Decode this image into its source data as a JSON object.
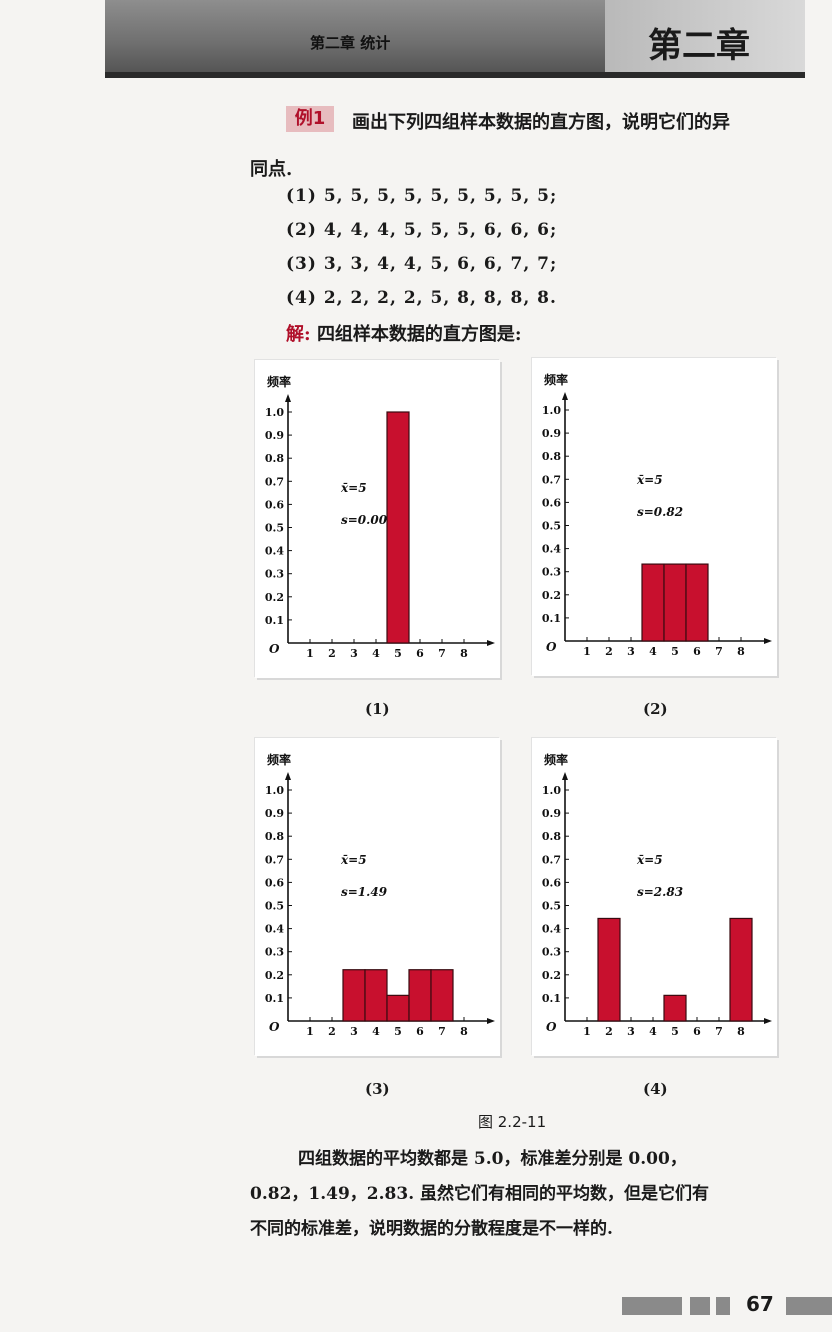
{
  "header": {
    "runner": "第二章  统计",
    "chapter_badge": "第二章"
  },
  "example": {
    "tag": "例1",
    "statement_line1": "画出下列四组样本数据的直方图，说明它们的异",
    "statement_line2": "同点.",
    "data_lines": [
      "(1) 5, 5, 5, 5, 5, 5, 5, 5, 5;",
      "(2) 4, 4, 4, 5, 5, 5, 6, 6, 6;",
      "(3) 3, 3, 4, 4, 5, 6, 6, 7, 7;",
      "(4) 2, 2, 2, 2, 5, 8, 8, 8, 8."
    ],
    "solution_label": "解:",
    "solution_text": "四组样本数据的直方图是:"
  },
  "figure_caption": "图 2.2-11",
  "conclusion": [
    "四组数据的平均数都是 5.0，标准差分别是 0.00，",
    "0.82，1.49，2.83. 虽然它们有相同的平均数，但是它们有",
    "不同的标准差，说明数据的分散程度是不一样的."
  ],
  "page_number": "67",
  "chart_data": [
    {
      "type": "bar",
      "caption": "(1)",
      "ylabel": "频率",
      "origin_label": "O",
      "x_ticks": [
        "1",
        "2",
        "3",
        "4",
        "5",
        "6",
        "7",
        "8"
      ],
      "y_ticks": [
        "0.1",
        "0.2",
        "0.3",
        "0.4",
        "0.5",
        "0.6",
        "0.7",
        "0.8",
        "0.9",
        "1.0"
      ],
      "ylim": [
        0,
        1.0
      ],
      "bars": [
        {
          "x": 5,
          "value": 1.0
        }
      ],
      "mean": "x̄=5",
      "sd": "s=0.00",
      "bar_color": "#c8102e"
    },
    {
      "type": "bar",
      "caption": "(2)",
      "ylabel": "频率",
      "origin_label": "O",
      "x_ticks": [
        "1",
        "2",
        "3",
        "4",
        "5",
        "6",
        "7",
        "8"
      ],
      "y_ticks": [
        "0.1",
        "0.2",
        "0.3",
        "0.4",
        "0.5",
        "0.6",
        "0.7",
        "0.8",
        "0.9",
        "1.0"
      ],
      "ylim": [
        0,
        1.0
      ],
      "bars": [
        {
          "x": 4,
          "value": 0.333
        },
        {
          "x": 5,
          "value": 0.333
        },
        {
          "x": 6,
          "value": 0.333
        }
      ],
      "mean": "x̄=5",
      "sd": "s=0.82",
      "bar_color": "#c8102e"
    },
    {
      "type": "bar",
      "caption": "(3)",
      "ylabel": "频率",
      "origin_label": "O",
      "x_ticks": [
        "1",
        "2",
        "3",
        "4",
        "5",
        "6",
        "7",
        "8"
      ],
      "y_ticks": [
        "0.1",
        "0.2",
        "0.3",
        "0.4",
        "0.5",
        "0.6",
        "0.7",
        "0.8",
        "0.9",
        "1.0"
      ],
      "ylim": [
        0,
        1.0
      ],
      "bars": [
        {
          "x": 3,
          "value": 0.222
        },
        {
          "x": 4,
          "value": 0.222
        },
        {
          "x": 5,
          "value": 0.111
        },
        {
          "x": 6,
          "value": 0.222
        },
        {
          "x": 7,
          "value": 0.222
        }
      ],
      "mean": "x̄=5",
      "sd": "s=1.49",
      "bar_color": "#c8102e"
    },
    {
      "type": "bar",
      "caption": "(4)",
      "ylabel": "频率",
      "origin_label": "O",
      "x_ticks": [
        "1",
        "2",
        "3",
        "4",
        "5",
        "6",
        "7",
        "8"
      ],
      "y_ticks": [
        "0.1",
        "0.2",
        "0.3",
        "0.4",
        "0.5",
        "0.6",
        "0.7",
        "0.8",
        "0.9",
        "1.0"
      ],
      "ylim": [
        0,
        1.0
      ],
      "bars": [
        {
          "x": 2,
          "value": 0.444
        },
        {
          "x": 5,
          "value": 0.111
        },
        {
          "x": 8,
          "value": 0.444
        }
      ],
      "mean": "x̄=5",
      "sd": "s=2.83",
      "bar_color": "#c8102e"
    }
  ]
}
